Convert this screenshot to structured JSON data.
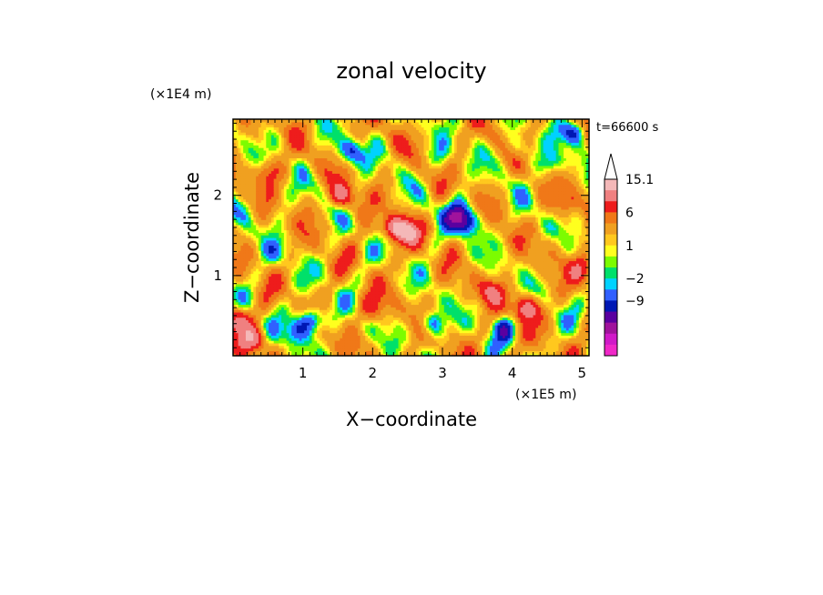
{
  "chart_data": {
    "type": "heatmap",
    "title": "zonal velocity",
    "xlabel": "X−coordinate",
    "ylabel": "Z−coordinate",
    "x_unit": "(×1E5 m)",
    "y_unit": "(×1E4 m)",
    "time_label": "t=66600 s",
    "xlim": [
      0.0,
      5.1
    ],
    "ylim": [
      0.0,
      2.95
    ],
    "x_ticks": [
      1,
      2,
      3,
      4,
      5
    ],
    "y_ticks": [
      1,
      2
    ],
    "colorbar": {
      "labeled_levels": [
        "15.1",
        "6",
        "1",
        "−2",
        "−9"
      ],
      "colors": [
        "#f4b8b8",
        "#f08080",
        "#ee1c1c",
        "#f07818",
        "#f0a020",
        "#ffc81e",
        "#ffff1e",
        "#7cfc00",
        "#00e06a",
        "#00d2ff",
        "#3060ff",
        "#0018b4",
        "#5a00a0",
        "#a0139c",
        "#d01ac8",
        "#f028c8"
      ]
    },
    "field": {
      "base_value": 2.0,
      "blobs": [
        {
          "x": 1.1,
          "z": 0.45,
          "v": -10
        },
        {
          "x": 0.9,
          "z": 0.3,
          "v": -6
        },
        {
          "x": 1.55,
          "z": 2.0,
          "v": 8
        },
        {
          "x": 2.3,
          "z": 1.6,
          "v": 9
        },
        {
          "x": 2.5,
          "z": 1.55,
          "v": 7
        },
        {
          "x": 1.7,
          "z": 2.55,
          "v": -7
        },
        {
          "x": 3.35,
          "z": 1.65,
          "v": -9
        },
        {
          "x": 3.2,
          "z": 1.8,
          "v": -8
        },
        {
          "x": 4.1,
          "z": 2.6,
          "v": -4
        },
        {
          "x": 4.6,
          "z": 2.4,
          "v": -5
        },
        {
          "x": 0.2,
          "z": 1.8,
          "v": -2
        },
        {
          "x": 0.6,
          "z": 1.3,
          "v": -3
        },
        {
          "x": 4.2,
          "z": 0.6,
          "v": 10
        },
        {
          "x": 3.7,
          "z": 0.8,
          "v": 6
        },
        {
          "x": 4.9,
          "z": 2.8,
          "v": -8
        },
        {
          "x": 2.85,
          "z": 0.4,
          "v": -7
        },
        {
          "x": 3.9,
          "z": 0.35,
          "v": -6
        },
        {
          "x": 0.05,
          "z": 0.45,
          "v": 9
        },
        {
          "x": 0.3,
          "z": 0.2,
          "v": 8
        },
        {
          "x": 2.0,
          "z": 0.6,
          "v": 5
        },
        {
          "x": 0.5,
          "z": 2.3,
          "v": 5
        },
        {
          "x": 4.8,
          "z": 1.9,
          "v": 4
        },
        {
          "x": 3.0,
          "z": 2.5,
          "v": -3
        },
        {
          "x": 5.0,
          "z": 1.1,
          "v": 6
        }
      ]
    }
  }
}
